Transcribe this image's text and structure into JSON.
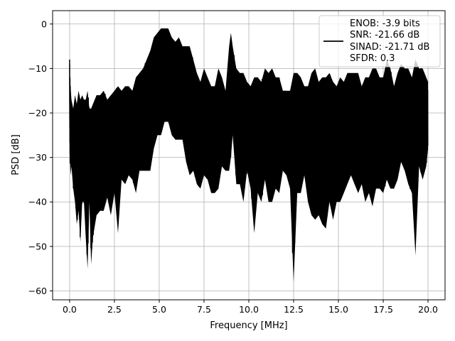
{
  "chart_data": {
    "type": "line",
    "xlabel": "Frequency [MHz]",
    "ylabel": "PSD [dB]",
    "xlim": [
      -0.95,
      20.95
    ],
    "ylim": [
      -62,
      3
    ],
    "xticks": [
      0.0,
      2.5,
      5.0,
      7.5,
      10.0,
      12.5,
      15.0,
      17.5,
      20.0
    ],
    "xtick_labels": [
      "0.0",
      "2.5",
      "5.0",
      "7.5",
      "10.0",
      "12.5",
      "15.0",
      "17.5",
      "20.0"
    ],
    "yticks": [
      0,
      -10,
      -20,
      -30,
      -40,
      -50,
      -60
    ],
    "ytick_labels": [
      "0",
      "−10",
      "−20",
      "−30",
      "−40",
      "−50",
      "−60"
    ],
    "grid": true,
    "legend_position": "top-right",
    "legend_lines": [
      "ENOB: -3.9 bits",
      "SNR: -21.66 dB",
      "SINAD: -21.71 dB",
      "SFDR: 0.3"
    ],
    "series": [
      {
        "color": "#000000",
        "x": [
          0.0,
          0.02,
          0.05,
          0.1,
          0.2,
          0.3,
          0.4,
          0.5,
          0.6,
          0.7,
          0.8,
          0.9,
          1.0,
          1.1,
          1.2,
          1.3,
          1.5,
          1.7,
          1.9,
          2.1,
          2.3,
          2.5,
          2.7,
          2.9,
          3.1,
          3.3,
          3.5,
          3.7,
          3.9,
          4.1,
          4.3,
          4.5,
          4.7,
          4.9,
          5.1,
          5.3,
          5.5,
          5.7,
          5.9,
          6.1,
          6.3,
          6.5,
          6.7,
          6.9,
          7.1,
          7.3,
          7.5,
          7.7,
          7.9,
          8.1,
          8.3,
          8.5,
          8.7,
          8.9,
          9.0,
          9.1,
          9.3,
          9.5,
          9.7,
          9.9,
          10.1,
          10.3,
          10.5,
          10.7,
          10.9,
          11.1,
          11.3,
          11.5,
          11.7,
          11.9,
          12.1,
          12.3,
          12.5,
          12.7,
          12.9,
          13.1,
          13.3,
          13.5,
          13.7,
          13.9,
          14.1,
          14.3,
          14.5,
          14.7,
          14.9,
          15.1,
          15.3,
          15.5,
          15.7,
          15.9,
          16.1,
          16.3,
          16.5,
          16.7,
          16.9,
          17.1,
          17.3,
          17.5,
          17.7,
          17.9,
          18.1,
          18.3,
          18.5,
          18.7,
          18.9,
          19.1,
          19.3,
          19.5,
          19.7,
          19.9,
          20.0
        ],
        "upper": [
          -8,
          -12,
          -14,
          -17,
          -19,
          -16,
          -18,
          -15,
          -17,
          -16,
          -17,
          -17,
          -15,
          -19,
          -19,
          -18,
          -16,
          -16,
          -15,
          -17,
          -16,
          -15,
          -14,
          -15,
          -14,
          -14,
          -15,
          -12,
          -11,
          -10,
          -8,
          -6,
          -3,
          -2,
          -1,
          -1,
          -1,
          -3,
          -4,
          -3,
          -5,
          -5,
          -5,
          -8,
          -11,
          -13,
          -10,
          -12,
          -14,
          -14,
          -10,
          -12,
          -15,
          -5,
          -2,
          -5,
          -10,
          -11,
          -11,
          -13,
          -14,
          -12,
          -12,
          -13,
          -10,
          -11,
          -10,
          -12,
          -12,
          -15,
          -15,
          -15,
          -11,
          -11,
          -12,
          -14,
          -14,
          -11,
          -10,
          -13,
          -12,
          -12,
          -11,
          -13,
          -14,
          -12,
          -13,
          -11,
          -11,
          -11,
          -11,
          -14,
          -12,
          -12,
          -10,
          -10,
          -12,
          -12,
          -8,
          -10,
          -14,
          -11,
          -9,
          -10,
          -10,
          -12,
          -8,
          -10,
          -10,
          -12,
          -13
        ],
        "lower": [
          -22,
          -30,
          -34,
          -32,
          -37,
          -40,
          -45,
          -42,
          -49,
          -40,
          -40,
          -48,
          -55,
          -40,
          -54,
          -48,
          -43,
          -42,
          -42,
          -39,
          -43,
          -38,
          -47,
          -35,
          -36,
          -34,
          -35,
          -38,
          -33,
          -33,
          -33,
          -33,
          -28,
          -25,
          -25,
          -22,
          -22,
          -25,
          -26,
          -26,
          -26,
          -31,
          -34,
          -33,
          -36,
          -37,
          -34,
          -35,
          -38,
          -38,
          -37,
          -32,
          -33,
          -33,
          -30,
          -25,
          -36,
          -36,
          -40,
          -33,
          -37,
          -47,
          -38,
          -40,
          -35,
          -40,
          -40,
          -37,
          -38,
          -33,
          -34,
          -37,
          -58,
          -38,
          -38,
          -34,
          -40,
          -43,
          -44,
          -43,
          -45,
          -46,
          -40,
          -44,
          -40,
          -40,
          -38,
          -36,
          -34,
          -36,
          -38,
          -36,
          -40,
          -38,
          -41,
          -37,
          -37,
          -38,
          -35,
          -37,
          -37,
          -35,
          -31,
          -33,
          -36,
          -38,
          -52,
          -32,
          -35,
          -32,
          -28
        ]
      }
    ]
  }
}
